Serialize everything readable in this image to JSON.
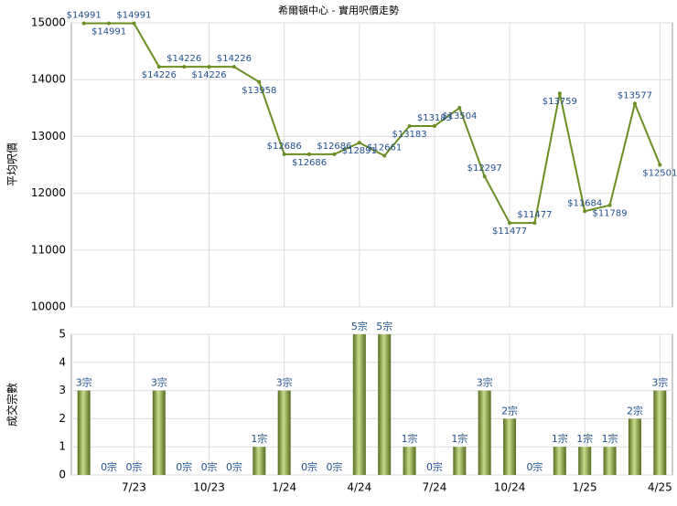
{
  "chart_data": [
    {
      "type": "line",
      "title": "希爾頓中心 - 實用呎價走勢",
      "y_label": "平均呎價",
      "color": "#6b8e23",
      "ylim": [
        10000,
        15000
      ],
      "yticks": [
        10000,
        11000,
        12000,
        13000,
        14000,
        15000
      ],
      "grid": true,
      "values": [
        14991,
        14991,
        14991,
        14226,
        14226,
        14226,
        14226,
        13958,
        12686,
        12686,
        12686,
        12891,
        12661,
        13183,
        13183,
        13504,
        12297,
        11477,
        11477,
        13759,
        11684,
        11789,
        13577,
        12501
      ],
      "value_labels": [
        "$14991",
        "$14991",
        "$14991",
        "$14226",
        "$14226",
        "$14226",
        "$14226",
        "$13958",
        "$12686",
        "$12686",
        "$12686",
        "$12891",
        "$12661",
        "$13183",
        "$13183",
        "$13504",
        "$12297",
        "$11477",
        "$11477",
        "$13759",
        "$11684",
        "$11789",
        "$13577",
        "$12501"
      ]
    },
    {
      "type": "bar",
      "y_label": "成交宗數",
      "color": "#6b8e23",
      "ylim": [
        0,
        5
      ],
      "yticks": [
        0,
        1,
        2,
        3,
        4,
        5
      ],
      "grid": true,
      "categories": [
        null,
        null,
        "7/23",
        null,
        null,
        "10/23",
        null,
        null,
        "1/24",
        null,
        null,
        "4/24",
        null,
        null,
        "7/24",
        null,
        null,
        "10/24",
        null,
        null,
        "1/25",
        null,
        null,
        "4/25"
      ],
      "values": [
        3,
        0,
        0,
        3,
        0,
        0,
        0,
        1,
        3,
        0,
        0,
        5,
        5,
        1,
        0,
        1,
        3,
        2,
        0,
        1,
        1,
        1,
        2,
        3
      ],
      "value_labels": [
        "3宗",
        "0宗",
        "0宗",
        "3宗",
        "0宗",
        "0宗",
        "0宗",
        "1宗",
        "3宗",
        "0宗",
        "0宗",
        "5宗",
        "5宗",
        "1宗",
        "0宗",
        "1宗",
        "3宗",
        "2宗",
        "0宗",
        "1宗",
        "1宗",
        "1宗",
        "2宗",
        "3宗"
      ]
    }
  ]
}
